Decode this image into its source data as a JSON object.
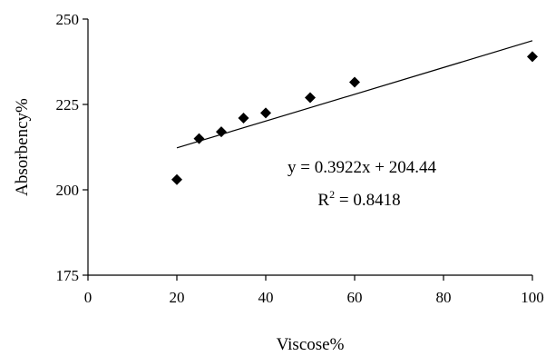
{
  "chart_data": {
    "type": "scatter",
    "title": "",
    "xlabel": "Viscose%",
    "ylabel": "Absorbency%",
    "xlim": [
      0,
      100
    ],
    "ylim": [
      175,
      250
    ],
    "xticks": [
      0,
      20,
      40,
      60,
      80,
      100
    ],
    "yticks": [
      175,
      200,
      225,
      250
    ],
    "x_tick_labels": [
      "0",
      "20",
      "40",
      "60",
      "80",
      "100"
    ],
    "y_tick_labels": [
      "175",
      "200",
      "225",
      "250"
    ],
    "series": [
      {
        "x": [
          20,
          25,
          30,
          35,
          40,
          50,
          60,
          100
        ],
        "y": [
          203,
          215,
          217,
          221,
          222.5,
          227,
          231.5,
          239
        ]
      }
    ],
    "trendline": {
      "type": "linear",
      "slope": 0.3922,
      "intercept": 204.44,
      "x_range": [
        20,
        100
      ],
      "equation": "y = 0.3922x + 204.44",
      "r2_label": "R",
      "r2_sup": "2",
      "r2_value": " = 0.8418"
    },
    "grid": false,
    "legend": "none",
    "colors": {
      "marker": "#000000",
      "line": "#000000",
      "axis": "#000000"
    }
  }
}
